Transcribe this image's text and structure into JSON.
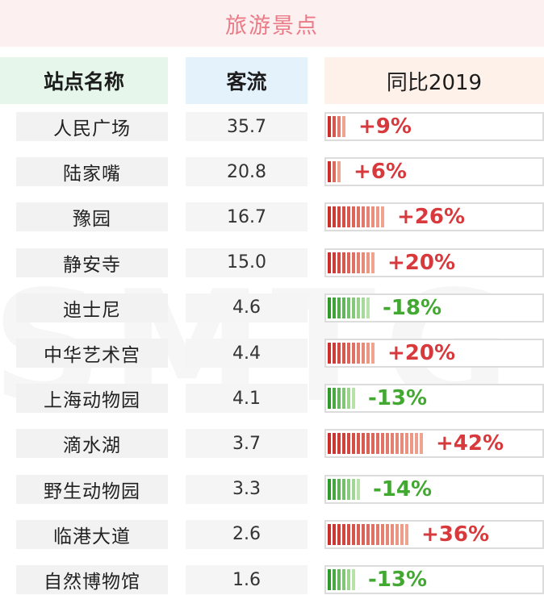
{
  "title": "旅游景点",
  "headers": {
    "name": "站点名称",
    "flow": "客流",
    "yoy": "同比2019"
  },
  "colors": {
    "positive": "#d8393d",
    "negative": "#43a832",
    "title": "#ea7b86"
  },
  "chart_data": {
    "type": "table",
    "columns": [
      "站点名称",
      "客流",
      "同比2019"
    ],
    "rows": [
      {
        "name": "人民广场",
        "flow": "35.7",
        "yoy": 9,
        "label": "+9%"
      },
      {
        "name": "陆家嘴",
        "flow": "20.8",
        "yoy": 6,
        "label": "+6%"
      },
      {
        "name": "豫园",
        "flow": "16.7",
        "yoy": 26,
        "label": "+26%"
      },
      {
        "name": "静安寺",
        "flow": "15.0",
        "yoy": 20,
        "label": "+20%"
      },
      {
        "name": "迪士尼",
        "flow": "4.6",
        "yoy": -18,
        "label": "-18%"
      },
      {
        "name": "中华艺术宫",
        "flow": "4.4",
        "yoy": 20,
        "label": "+20%"
      },
      {
        "name": "上海动物园",
        "flow": "4.1",
        "yoy": -13,
        "label": "-13%"
      },
      {
        "name": "滴水湖",
        "flow": "3.7",
        "yoy": 42,
        "label": "+42%"
      },
      {
        "name": "野生动物园",
        "flow": "3.3",
        "yoy": -14,
        "label": "-14%"
      },
      {
        "name": "临港大道",
        "flow": "2.6",
        "yoy": 36,
        "label": "+36%"
      },
      {
        "name": "自然博物馆",
        "flow": "1.6",
        "yoy": -13,
        "label": "-13%"
      }
    ]
  }
}
